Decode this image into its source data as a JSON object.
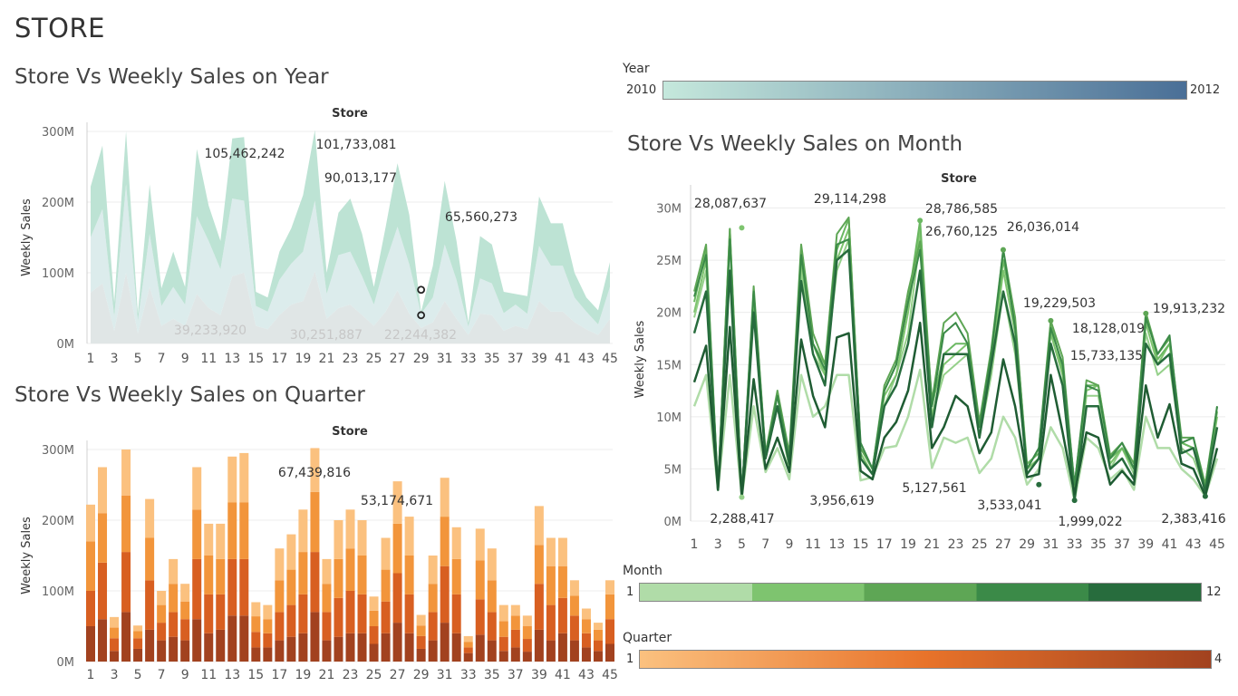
{
  "dashboard": {
    "title": "STORE"
  },
  "charts": {
    "year": {
      "title": "Store Vs Weekly Sales on Year"
    },
    "quarter": {
      "title": "Store Vs Weekly Sales on Quarter"
    },
    "month": {
      "title": "Store Vs Weekly Sales on Month"
    }
  },
  "legends": {
    "year": {
      "title": "Year",
      "min": "2010",
      "max": "2012",
      "colors": [
        "#c5e8dc",
        "#4a6f97"
      ]
    },
    "month": {
      "title": "Month",
      "min": "1",
      "max": "12",
      "colors": [
        "#b0dca8",
        "#7ec46f",
        "#5ea655",
        "#3b8a48",
        "#276c3d",
        "#1f5c33"
      ]
    },
    "quarter": {
      "title": "Quarter",
      "min": "1",
      "max": "4",
      "colors": [
        "#fbc17f",
        "#e8732a",
        "#a2421f"
      ]
    }
  },
  "chart_data": [
    {
      "type": "area",
      "id": "year",
      "title": "Store Vs Weekly Sales on Year",
      "xlabel": "Store",
      "ylabel": "Weekly Sales",
      "stacked": true,
      "ylim": [
        0,
        300000000
      ],
      "yticks": [
        "0M",
        "100M",
        "200M",
        "300M"
      ],
      "x": [
        1,
        2,
        3,
        4,
        5,
        6,
        7,
        8,
        9,
        10,
        11,
        12,
        13,
        14,
        15,
        16,
        17,
        18,
        19,
        20,
        21,
        22,
        23,
        24,
        25,
        26,
        27,
        28,
        29,
        30,
        31,
        32,
        33,
        34,
        35,
        36,
        37,
        38,
        39,
        40,
        41,
        42,
        43,
        44,
        45
      ],
      "xtick_labels": [
        "1",
        "3",
        "5",
        "7",
        "9",
        "11",
        "13",
        "15",
        "17",
        "19",
        "21",
        "23",
        "25",
        "27",
        "29",
        "31",
        "33",
        "35",
        "37",
        "39",
        "41",
        "43",
        "45"
      ],
      "series": [
        {
          "color": "#e0e6e6",
          "values": [
            72,
            85,
            18,
            100,
            14,
            80,
            25,
            35,
            25,
            70,
            50,
            40,
            95,
            100,
            25,
            20,
            40,
            55,
            60,
            102,
            35,
            50,
            55,
            40,
            25,
            45,
            75,
            42,
            22,
            30,
            60,
            35,
            12,
            42,
            40,
            18,
            25,
            20,
            60,
            45,
            45,
            30,
            20,
            12,
            35
          ]
        },
        {
          "color": "#dcecec",
          "values": [
            78,
            105,
            20,
            125,
            18,
            75,
            28,
            45,
            30,
            110,
            95,
            65,
            110,
            102,
            28,
            25,
            50,
            58,
            70,
            100,
            35,
            75,
            75,
            55,
            30,
            70,
            90,
            70,
            20,
            35,
            80,
            55,
            12,
            50,
            45,
            25,
            30,
            22,
            78,
            65,
            65,
            35,
            25,
            15,
            45
          ]
        },
        {
          "color": "#bde3d4",
          "values": [
            72,
            90,
            20,
            75,
            10,
            70,
            25,
            50,
            25,
            95,
            50,
            40,
            85,
            90,
            20,
            20,
            40,
            50,
            80,
            100,
            30,
            60,
            75,
            60,
            25,
            50,
            90,
            70,
            3,
            45,
            90,
            55,
            5,
            60,
            55,
            30,
            15,
            25,
            70,
            60,
            60,
            35,
            20,
            20,
            35
          ]
        }
      ],
      "annotations": [
        {
          "store": 14,
          "text": "105,462,242"
        },
        {
          "store": 20,
          "text": "101,733,081"
        },
        {
          "store": 20,
          "text": "90,013,177"
        },
        {
          "store": 31,
          "text": "65,560,273"
        },
        {
          "store": 13,
          "text": "39,233,920"
        },
        {
          "store": 20,
          "text": "30,251,887"
        },
        {
          "store": 28,
          "text": "22,244,382"
        }
      ]
    },
    {
      "type": "bar",
      "id": "quarter",
      "title": "Store Vs Weekly Sales on Quarter",
      "xlabel": "Store",
      "ylabel": "Weekly Sales",
      "stacked": true,
      "ylim": [
        0,
        300000000
      ],
      "yticks": [
        "0M",
        "100M",
        "200M",
        "300M"
      ],
      "x": [
        1,
        2,
        3,
        4,
        5,
        6,
        7,
        8,
        9,
        10,
        11,
        12,
        13,
        14,
        15,
        16,
        17,
        18,
        19,
        20,
        21,
        22,
        23,
        24,
        25,
        26,
        27,
        28,
        29,
        30,
        31,
        32,
        33,
        34,
        35,
        36,
        37,
        38,
        39,
        40,
        41,
        42,
        43,
        44,
        45
      ],
      "xtick_labels": [
        "1",
        "3",
        "5",
        "7",
        "9",
        "11",
        "13",
        "15",
        "17",
        "19",
        "21",
        "23",
        "25",
        "27",
        "29",
        "31",
        "33",
        "35",
        "37",
        "39",
        "41",
        "43",
        "45"
      ],
      "series": [
        {
          "name": "1",
          "color": "#a2421f",
          "values": [
            50,
            60,
            15,
            70,
            18,
            45,
            30,
            35,
            30,
            60,
            40,
            45,
            65,
            65,
            20,
            20,
            30,
            35,
            40,
            70,
            30,
            35,
            40,
            40,
            25,
            40,
            55,
            40,
            18,
            30,
            55,
            40,
            12,
            38,
            30,
            15,
            20,
            14,
            45,
            30,
            40,
            30,
            20,
            15,
            25
          ]
        },
        {
          "name": "2",
          "color": "#d85f21",
          "values": [
            50,
            80,
            18,
            85,
            15,
            70,
            25,
            35,
            30,
            85,
            55,
            50,
            80,
            80,
            22,
            20,
            40,
            45,
            55,
            85,
            40,
            55,
            60,
            55,
            25,
            45,
            70,
            55,
            18,
            40,
            80,
            55,
            8,
            50,
            40,
            20,
            25,
            18,
            65,
            50,
            50,
            35,
            20,
            15,
            35
          ]
        },
        {
          "name": "3",
          "color": "#f2953b",
          "values": [
            70,
            70,
            15,
            80,
            10,
            60,
            25,
            40,
            25,
            70,
            55,
            50,
            80,
            80,
            22,
            20,
            45,
            50,
            60,
            85,
            40,
            55,
            60,
            55,
            22,
            45,
            70,
            55,
            15,
            40,
            70,
            50,
            8,
            55,
            45,
            22,
            20,
            18,
            55,
            55,
            45,
            28,
            20,
            15,
            35
          ]
        },
        {
          "name": "4",
          "color": "#fbc17f",
          "values": [
            52,
            65,
            15,
            65,
            8,
            55,
            20,
            35,
            25,
            60,
            45,
            50,
            65,
            70,
            20,
            20,
            45,
            50,
            60,
            62,
            35,
            55,
            55,
            50,
            20,
            45,
            60,
            55,
            15,
            40,
            55,
            45,
            8,
            45,
            45,
            23,
            15,
            15,
            55,
            40,
            40,
            22,
            15,
            10,
            20
          ]
        }
      ],
      "annotations": [
        {
          "store": 20,
          "text": "67,439,816"
        },
        {
          "store": 27,
          "text": "53,174,671"
        }
      ]
    },
    {
      "type": "line",
      "id": "month",
      "title": "Store Vs Weekly Sales on Month",
      "xlabel": "Store",
      "ylabel": "Weekly Sales",
      "ylim": [
        0,
        31000000
      ],
      "yticks": [
        "0M",
        "5M",
        "10M",
        "15M",
        "20M",
        "25M",
        "30M"
      ],
      "x": [
        1,
        2,
        3,
        4,
        5,
        6,
        7,
        8,
        9,
        10,
        11,
        12,
        13,
        14,
        15,
        16,
        17,
        18,
        19,
        20,
        21,
        22,
        23,
        24,
        25,
        26,
        27,
        28,
        29,
        30,
        31,
        32,
        33,
        34,
        35,
        36,
        37,
        38,
        39,
        40,
        41,
        42,
        43,
        44,
        45
      ],
      "xtick_labels": [
        "1",
        "3",
        "5",
        "7",
        "9",
        "11",
        "13",
        "15",
        "17",
        "19",
        "21",
        "23",
        "25",
        "27",
        "29",
        "31",
        "33",
        "35",
        "37",
        "39",
        "41",
        "43",
        "45"
      ],
      "series": [
        {
          "color": "#b0dca8",
          "width": 2.5,
          "values": [
            11,
            14,
            3,
            14,
            2.3,
            11,
            4.7,
            7,
            4,
            14,
            10,
            11,
            14,
            14,
            3.9,
            4.2,
            7,
            7.2,
            10,
            14.5,
            5.1,
            8,
            7.5,
            8,
            4.6,
            6,
            10,
            8,
            3.5,
            5,
            9,
            7,
            1.99,
            8,
            7,
            4,
            5,
            3,
            10,
            7,
            7,
            5,
            4,
            2.4,
            6
          ]
        },
        {
          "color": "#95d08a",
          "width": 2,
          "values": [
            19.5,
            24,
            3,
            27,
            2.3,
            21,
            6,
            11,
            5,
            24,
            16,
            14,
            24,
            27,
            6,
            4.5,
            11,
            14,
            18,
            27,
            10,
            14,
            15,
            16,
            8,
            14,
            22,
            16,
            5,
            6,
            18,
            14,
            2.5,
            12,
            12,
            5,
            7,
            4.5,
            18,
            14,
            15,
            7,
            6,
            3,
            9
          ]
        },
        {
          "color": "#7ec46f",
          "width": 2,
          "values": [
            20,
            25,
            3,
            28,
            2.4,
            21,
            6,
            11,
            6,
            25,
            17,
            14,
            25,
            28,
            6.5,
            4.5,
            12,
            14,
            20,
            28,
            10,
            15,
            16,
            17,
            9,
            15,
            24,
            18,
            5,
            6,
            18,
            14,
            2.8,
            12.5,
            13,
            5.5,
            7,
            5,
            19,
            15,
            17,
            7.5,
            7,
            3,
            10
          ]
        },
        {
          "color": "#6bb862",
          "width": 2,
          "values": [
            21,
            26,
            3,
            27.5,
            2.3,
            22,
            6.5,
            12,
            6,
            26,
            17,
            15,
            26,
            29,
            7,
            5,
            12.5,
            15,
            21,
            28.8,
            11,
            16,
            17,
            17,
            9,
            16,
            25,
            19,
            5.5,
            6.5,
            19,
            14.5,
            3,
            13,
            13,
            6,
            7,
            5,
            20,
            15.5,
            17,
            7.5,
            7,
            3.5,
            10.5
          ]
        },
        {
          "color": "#5ea655",
          "width": 2,
          "values": [
            22,
            26.5,
            3,
            28,
            2.3,
            22.5,
            6.5,
            12.5,
            6.5,
            26.5,
            18,
            15,
            27.5,
            29.1,
            7,
            5,
            13,
            15.5,
            22,
            26.8,
            11.5,
            19,
            20,
            18,
            9.5,
            16.5,
            26,
            19.5,
            5,
            7,
            19.2,
            15.7,
            3.3,
            13.5,
            13,
            6.3,
            7.5,
            5.5,
            20,
            16,
            17.5,
            8,
            8,
            3.5,
            11
          ]
        },
        {
          "color": "#3b8a48",
          "width": 2,
          "values": [
            21.5,
            25.5,
            3,
            27,
            2.3,
            22,
            6.3,
            12,
            6,
            25.5,
            17,
            14.5,
            26.5,
            27,
            7.5,
            5,
            12.5,
            15,
            21,
            26,
            11,
            18,
            19,
            17,
            9,
            16,
            26,
            18.5,
            5,
            7,
            18.5,
            15,
            3.5,
            13,
            12.5,
            6,
            7.5,
            5,
            19.5,
            16,
            17.8,
            7.5,
            8,
            3,
            11
          ]
        },
        {
          "color": "#276c3d",
          "width": 2.5,
          "values": [
            18,
            22,
            3,
            24,
            2.3,
            20,
            6,
            11,
            5.5,
            23,
            16,
            13,
            25,
            26,
            6,
            4.5,
            11,
            13,
            17,
            24,
            9,
            16,
            16,
            16,
            8,
            15,
            22,
            17,
            4.5,
            6,
            17,
            13,
            2,
            11,
            11,
            5,
            6,
            4,
            17,
            15,
            16,
            6.5,
            7,
            2.8,
            9
          ]
        },
        {
          "color": "#1f5c33",
          "width": 2.5,
          "values": [
            13.3,
            16.8,
            3,
            18.6,
            2.3,
            13.6,
            5,
            8,
            4.7,
            17.4,
            12,
            9,
            17.6,
            18,
            4.8,
            4,
            8,
            9.5,
            12.5,
            19,
            7,
            9,
            12,
            11,
            6.5,
            8.5,
            15.5,
            11,
            4.2,
            4.5,
            14,
            8.5,
            2.6,
            8.5,
            8,
            3.5,
            4.8,
            3.5,
            13,
            8,
            11.2,
            5.5,
            5,
            2.4,
            7
          ]
        }
      ],
      "annotations": [
        {
          "store": 4,
          "text": "28,087,637"
        },
        {
          "store": 14,
          "text": "29,114,298"
        },
        {
          "store": 20,
          "text": "28,786,585"
        },
        {
          "store": 20,
          "text": "26,760,125"
        },
        {
          "store": 27,
          "text": "26,036,014"
        },
        {
          "store": 31,
          "text": "19,229,503"
        },
        {
          "store": 39,
          "text": "19,913,232"
        },
        {
          "store": 35,
          "text": "18,128,019"
        },
        {
          "store": 33,
          "text": "15,733,135"
        },
        {
          "store": 5,
          "text": "2,288,417"
        },
        {
          "store": 15,
          "text": "3,956,619"
        },
        {
          "store": 20,
          "text": "5,127,561"
        },
        {
          "store": 30,
          "text": "3,533,041"
        },
        {
          "store": 33,
          "text": "1,999,022"
        },
        {
          "store": 44,
          "text": "2,383,416"
        }
      ]
    }
  ]
}
